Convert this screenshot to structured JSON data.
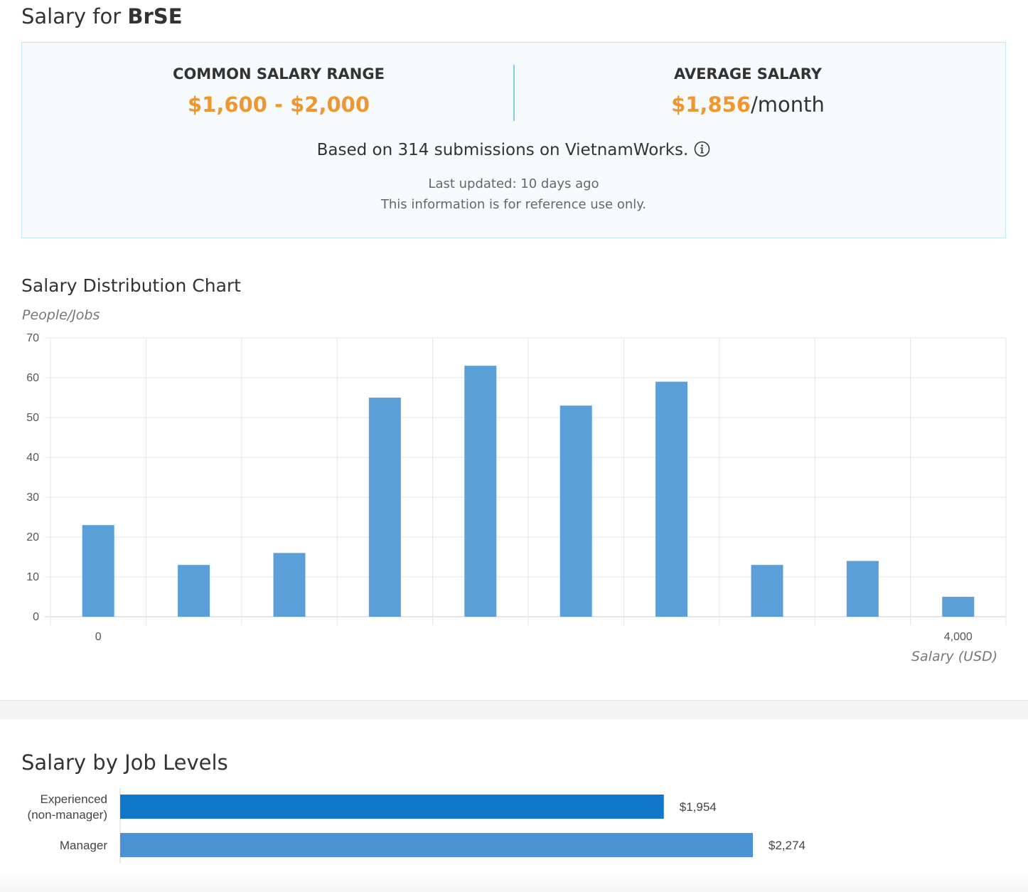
{
  "header": {
    "title_prefix": "Salary for ",
    "role": "BrSE"
  },
  "summary": {
    "range_label": "COMMON SALARY RANGE",
    "range_value": "$1,600 - $2,000",
    "average_label": "AVERAGE SALARY",
    "average_value": "$1,856",
    "average_unit": "/month",
    "based_on": "Based on 314 submissions on VietnamWorks.",
    "last_updated": "Last updated: 10 days ago",
    "disclaimer": "This information is for reference use only."
  },
  "colors": {
    "accent_orange": "#f0962e",
    "bar_blue": "#5b9fd8",
    "bar_dark_blue": "#0f78c9",
    "bar_light_blue": "#4a94d3"
  },
  "icons": {
    "info": "info-circle-icon"
  },
  "distribution": {
    "section_title": "Salary Distribution Chart"
  },
  "levels": {
    "section_title": "Salary by Job Levels"
  },
  "chart_data": [
    {
      "type": "bar",
      "title": "Salary Distribution Chart",
      "ylabel": "People/Jobs",
      "xlabel": "Salary (USD)",
      "ylim": [
        0,
        70
      ],
      "yticks": [
        0,
        10,
        20,
        30,
        40,
        50,
        60,
        70
      ],
      "x_tick_labels": [
        "0",
        "4,000"
      ],
      "grid": true,
      "values": [
        23,
        13,
        16,
        55,
        63,
        53,
        59,
        13,
        14,
        5
      ]
    },
    {
      "type": "bar",
      "orientation": "horizontal",
      "title": "Salary by Job Levels",
      "categories": [
        "Experienced\n(non-manager)",
        "Manager"
      ],
      "values": [
        1954,
        2274
      ],
      "value_labels": [
        "$1,954",
        "$2,274"
      ]
    }
  ]
}
